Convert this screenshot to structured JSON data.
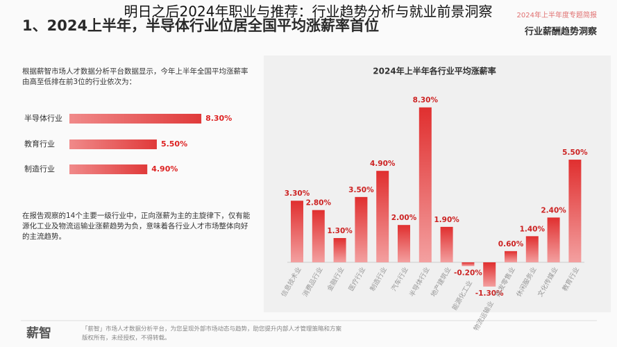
{
  "overlay_title": "明日之后2024年职业与推荐：行业趋势分析与就业前景洞察",
  "slide": {
    "heading": "1、2024上半年，半导体行业位居全国平均涨薪率首位",
    "report_label": "2024年上半年度专题简报",
    "report_title": "行业薪酬趋势洞察",
    "intro": "根据薪智市场人才数据分析平台数据显示，今年上半年全国平均涨薪率由高至低排在前3位的行业依次为：",
    "conclusion": "在报告观察的14个主要一级行业中，正向涨薪为主的主旋律下，仅有能源化工业及物流运输业涨薪趋势为负，意味着各行业人才市场整体向好的主流趋势。"
  },
  "footer": {
    "logo": "薪智",
    "line1": "「薪智」市场人才数据分析平台，为您呈现外部市场动态与趋势，助您提升内部人才管理策略和方案",
    "line2": "版权所有，未经授权，不得转载。"
  },
  "chart_data": [
    {
      "type": "bar",
      "orientation": "horizontal",
      "color": "#e04848",
      "categories": [
        "半导体行业",
        "教育行业",
        "制造行业"
      ],
      "values": [
        8.3,
        5.5,
        4.9
      ],
      "value_labels": [
        "8.30%",
        "5.50%",
        "4.90%"
      ]
    },
    {
      "type": "bar",
      "title": "2024年上半年各行业平均涨薪率",
      "color": "#e04848",
      "categories": [
        "信息技术业",
        "消费品行业",
        "金融行业",
        "医疗行业",
        "制造行业",
        "汽车行业",
        "半导体行业",
        "地产建筑业",
        "能源化工业",
        "物流运输业",
        "批发零售业",
        "休闲服务业",
        "文化传媒业",
        "教育行业"
      ],
      "values": [
        3.3,
        2.8,
        1.3,
        3.5,
        4.9,
        2.0,
        8.3,
        1.9,
        -0.2,
        -1.3,
        0.6,
        1.4,
        2.4,
        5.5
      ],
      "value_labels": [
        "3.30%",
        "2.80%",
        "1.30%",
        "3.50%",
        "4.90%",
        "2.00%",
        "8.30%",
        "1.90%",
        "-0.20%",
        "-1.30%",
        "0.60%",
        "1.40%",
        "2.40%",
        "5.50%"
      ]
    }
  ]
}
